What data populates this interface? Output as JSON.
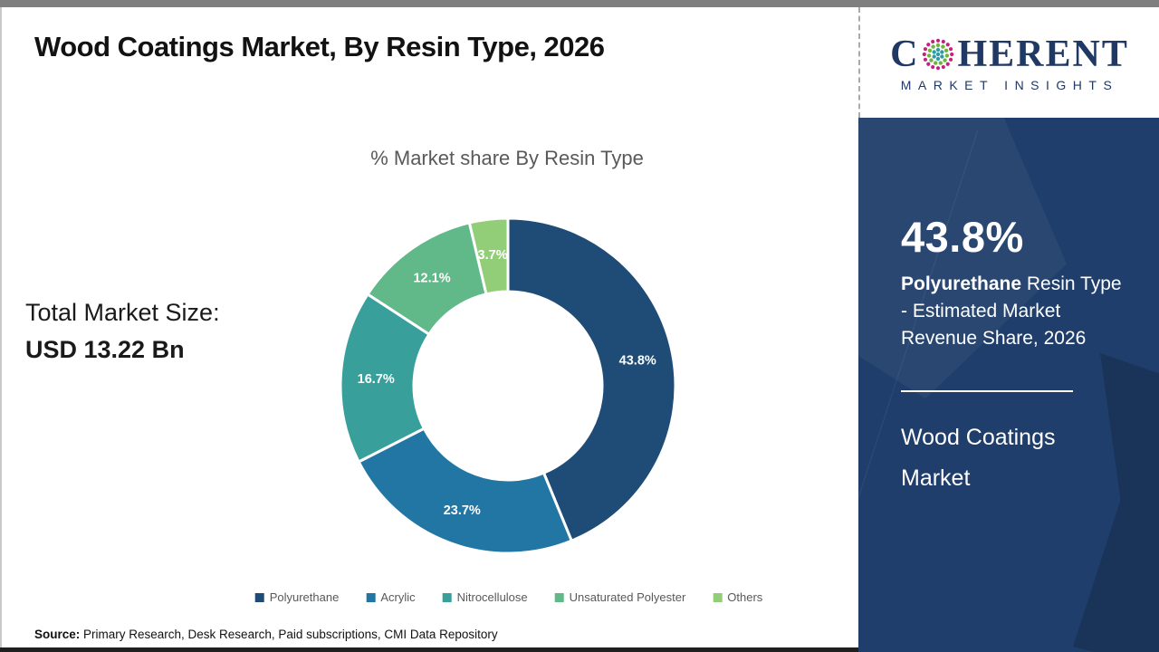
{
  "header": {
    "title": "Wood Coatings Market, By Resin Type, 2026"
  },
  "logo": {
    "brand_first": "C",
    "brand_rest": "HERENT",
    "subtitle": "MARKET INSIGHTS",
    "brand_color": "#1f3864",
    "dot_colors": [
      "#2e9ca6",
      "#6fb43f",
      "#c4227f"
    ]
  },
  "main": {
    "total_label": "Total Market Size:",
    "total_value": "USD 13.22 Bn",
    "source_label": "Source:",
    "source_text": " Primary Research, Desk Research, Paid subscriptions, CMI Data Repository"
  },
  "chart_data": {
    "type": "pie",
    "subtype": "donut",
    "title": "% Market share By Resin Type",
    "categories": [
      "Polyurethane",
      "Acrylic",
      "Nitrocellulose",
      "Unsaturated Polyester",
      "Others"
    ],
    "values": [
      43.8,
      23.7,
      16.7,
      12.1,
      3.7
    ],
    "labels": [
      "43.8%",
      "23.7%",
      "16.7%",
      "12.1%",
      "3.7%"
    ],
    "colors": [
      "#1e4c77",
      "#2176a4",
      "#389f9b",
      "#61b888",
      "#92ce78"
    ],
    "start_angle_deg": 0,
    "direction": "clockwise",
    "outer_radius": 185,
    "inner_radius": 104,
    "label_radius": 146,
    "legend_position": "bottom"
  },
  "sidebar": {
    "stat_value": "43.8%",
    "stat_desc_bold": "Polyurethane",
    "stat_desc_rest": " Resin Type - Estimated Market Revenue Share, 2026",
    "panel_title": "Wood Coatings Market",
    "panel_color": "#1f3e6b"
  }
}
